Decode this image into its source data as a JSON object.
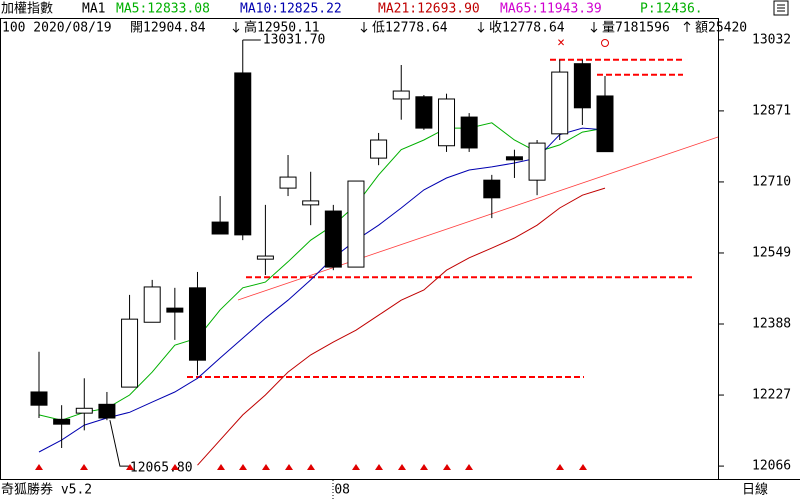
{
  "header": {
    "title": "加權指數",
    "ma_label": "MA1",
    "p_label": "P:12436.",
    "quote": [
      "100 2020/08/19",
      "開12904.84",
      "高12950.11",
      "低12778.64",
      "收12778.64",
      "量7181596",
      "額25420"
    ]
  },
  "footer": {
    "brand": "奇狐勝券 v5.2",
    "period": "日線"
  },
  "chart_data": {
    "type": "candlestick",
    "categories": [
      null,
      null,
      null,
      null,
      null,
      null,
      null,
      null,
      null,
      null,
      null,
      null,
      null,
      "08",
      null,
      null,
      null,
      null,
      null,
      null,
      null,
      null,
      null,
      null,
      null,
      null
    ],
    "open": [
      12234,
      12172,
      12186,
      12206,
      12245,
      12392,
      12424,
      12470,
      12619,
      12957,
      12535,
      12696,
      12658,
      12644,
      12517,
      12764,
      12898,
      12903,
      12792,
      12857,
      12714,
      12767,
      12714,
      12819,
      12978,
      12904.84
    ],
    "high": [
      12325,
      12204,
      12265,
      12234,
      12454,
      12488,
      12470,
      12506,
      12678,
      13031.7,
      12658,
      12771,
      12733,
      12658,
      12712,
      12821,
      12975,
      12907,
      12910,
      12866,
      12726,
      12783,
      12805,
      12987,
      12987,
      12950.11
    ],
    "low": [
      12175,
      12107,
      12147,
      12170,
      12245,
      12392,
      12352,
      12272,
      12592,
      12578,
      12499,
      12678,
      12612,
      12510,
      12517,
      12748,
      12851,
      12828,
      12778,
      12778,
      12628,
      12719,
      12680,
      12805,
      12839,
      12778.64
    ],
    "close": [
      12204,
      12161,
      12197,
      12175,
      12399,
      12472,
      12415,
      12306,
      12592,
      12590,
      12542,
      12721,
      12667,
      12517,
      12712,
      12805,
      12916,
      12832,
      12898,
      12787,
      12674,
      12760,
      12798,
      12959,
      12878,
      12778.64
    ],
    "up_color": "#ffffff",
    "down_color": "#000000",
    "series": [
      {
        "name": "MA5:12833.08",
        "color": "#00b000",
        "values": [
          12182,
          12170,
          12188,
          12197,
          12227,
          12279,
          12340,
          12356,
          12420,
          12470,
          12483,
          12529,
          12578,
          12612,
          12658,
          12726,
          12783,
          12805,
          12832,
          12832,
          12844,
          12805,
          12778,
          12794,
          12823,
          12832
        ]
      },
      {
        "name": "MA10:12825.22",
        "color": "#0000b0",
        "values": [
          12098,
          12125,
          12159,
          12175,
          12188,
          12211,
          12234,
          12265,
          12311,
          12356,
          12401,
          12442,
          12488,
          12538,
          12578,
          12612,
          12651,
          12692,
          12719,
          12737,
          12744,
          12753,
          12764,
          12817,
          12832,
          12828
        ]
      },
      {
        "name": "MA21:12693.90",
        "color": "#c00000",
        "values": [
          null,
          null,
          null,
          null,
          null,
          null,
          null,
          12068,
          12125,
          12182,
          12227,
          12279,
          12318,
          12347,
          12374,
          12408,
          12442,
          12465,
          12510,
          12538,
          12560,
          12583,
          12612,
          12651,
          12680,
          12696
        ]
      },
      {
        "name": "MA65:11943.39",
        "color": "#d000d0",
        "values": [
          null,
          null,
          null,
          null,
          null,
          null,
          null,
          null,
          null,
          null,
          null,
          null,
          null,
          null,
          null,
          null,
          null,
          null,
          null,
          null,
          null,
          null,
          null,
          null,
          null,
          null
        ]
      }
    ],
    "annotations": [
      {
        "label": "13031.70",
        "value": 13031.7
      },
      {
        "label": "12065.80",
        "value": 12065.8
      }
    ],
    "levels": [
      12987,
      12953,
      12494,
      12268
    ],
    "level_color": "#ff0000",
    "ylim": [
      12039,
      13077
    ],
    "yticks": [
      12066,
      12227,
      12388,
      12549,
      12710,
      12871,
      13032
    ],
    "grid": false
  }
}
